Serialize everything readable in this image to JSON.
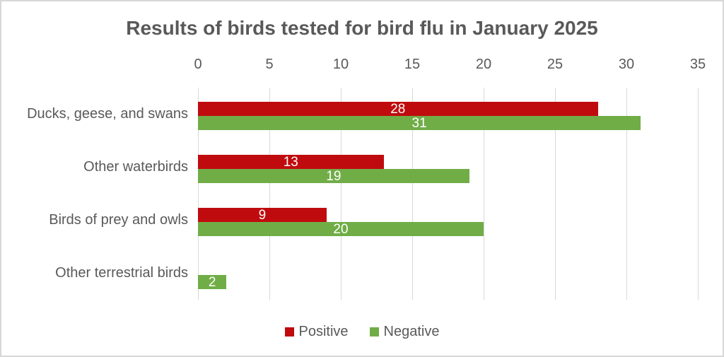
{
  "chart_data": {
    "type": "bar",
    "orientation": "horizontal",
    "title": "Results of birds tested for bird flu in January 2025",
    "categories": [
      "Ducks, geese, and swans",
      "Other waterbirds",
      "Birds of prey and owls",
      "Other terrestrial birds"
    ],
    "series": [
      {
        "name": "Positive",
        "color": "#c00b0e",
        "values": [
          28,
          13,
          9,
          0
        ]
      },
      {
        "name": "Negative",
        "color": "#70ad47",
        "values": [
          31,
          19,
          20,
          2
        ]
      }
    ],
    "x_axis": {
      "position": "top",
      "min": 0,
      "max": 35,
      "ticks": [
        0,
        5,
        10,
        15,
        20,
        25,
        30,
        35
      ]
    },
    "grid": true,
    "gridline_color": "#d9d9d9",
    "text_color": "#595959",
    "value_labels": "inside-center",
    "value_label_color": "#ffffff",
    "hide_zero_bars": true,
    "legend_position": "bottom"
  }
}
